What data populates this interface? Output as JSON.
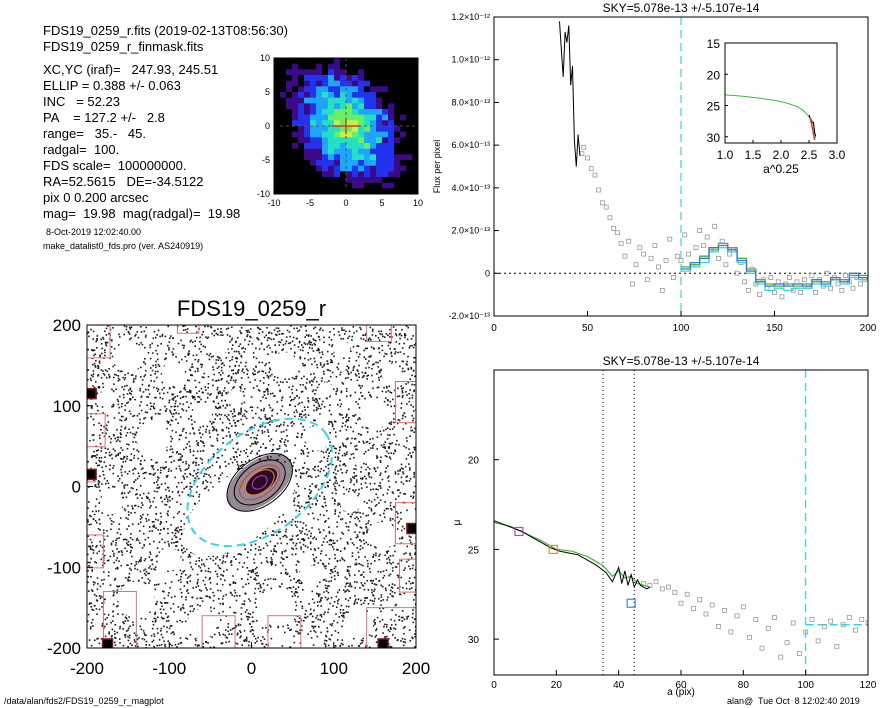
{
  "header": {
    "lines": [
      "FDS19_0259_r.fits  (2019-02-13T08:56:30)",
      "FDS19_0259_r_finmask.fits",
      "XC,YC (iraf)=   247.93, 245.51",
      "ELLIP = 0.388 +/- 0.063",
      "INC   = 52.23",
      "PA    = 127.2 +/-   2.8",
      "range=   35.-   45.",
      "radgal=  100.",
      "FDS scale=  100000000.",
      "RA=52.5615   DE=-34.5122",
      "pix 0 0.200 arcsec",
      "mag=  19.98  mag(radgal)=  19.98"
    ],
    "date_line": "8-Oct-2019 12:02:40.00",
    "prog_line": "make_datalist0_fds.pro (ver. AS240919)"
  },
  "footer": {
    "path": "/data/alan/fds2/FDS19_0259_r_magplot",
    "stamp": "alan@  Tue Oct  8 12:02:40 2019"
  },
  "colors": {
    "black": "#000000",
    "cyan": "#35d6e6",
    "grey": "#9a9a9a",
    "green": "#3cb83c",
    "blue": "#4a6fd8",
    "red": "#d13a3a",
    "orange": "#f08a30",
    "magenta": "#c040c0",
    "box_blue": "#3a8ad8"
  },
  "chart_data": [
    {
      "id": "contour",
      "type": "heatmap",
      "xlim": [
        -10,
        10
      ],
      "ylim": [
        -10,
        10
      ],
      "xticks": [
        "-10",
        "-5",
        "0",
        "5",
        "10"
      ],
      "yticks": [
        "10",
        "5",
        "0",
        "-5",
        "-10"
      ],
      "colormap": [
        "#000000",
        "#3a0a88",
        "#2233ee",
        "#1ea6ff",
        "#22e0c0",
        "#66f066",
        "#c8f04a"
      ]
    },
    {
      "id": "image",
      "type": "scatter",
      "title": "FDS19_0259_r",
      "xlim": [
        -200,
        200
      ],
      "ylim": [
        -200,
        200
      ],
      "xticks": [
        "-200",
        "-100",
        "0",
        "100",
        "200"
      ],
      "yticks": [
        "200",
        "100",
        "0",
        "-100",
        "-200"
      ],
      "ellipses": [
        {
          "a": 100,
          "b": 61,
          "pa": 127.2,
          "color": "#35d6e6",
          "dash": true
        },
        {
          "a": 45,
          "b": 28,
          "pa": 127.2,
          "color": "#000000",
          "dash": false
        },
        {
          "a": 35,
          "b": 22,
          "pa": 127.2,
          "color": "#000000",
          "dash": false
        },
        {
          "a": 28,
          "b": 16,
          "pa": 127.2,
          "color": "#d13a3a",
          "dash": false
        },
        {
          "a": 20,
          "b": 12,
          "pa": 127.2,
          "color": "#f08a30",
          "dash": false
        },
        {
          "a": 10,
          "b": 7,
          "pa": 127.2,
          "color": "#c040c0",
          "dash": false
        }
      ]
    },
    {
      "id": "sky",
      "type": "line",
      "title": "SKY=5.078e-13 +/-5.107e-14",
      "ylabel": "Flux per pixel",
      "xlim": [
        0,
        200
      ],
      "ylim": [
        -2e-13,
        1.2e-12
      ],
      "xticks": [
        "0",
        "50",
        "100",
        "150",
        "200"
      ],
      "yticks": [
        {
          "v": 1.2e-12,
          "t": "1.2×10⁻¹²"
        },
        {
          "v": 1e-12,
          "t": "1.0×10⁻¹²"
        },
        {
          "v": 8e-13,
          "t": "8.0×10⁻¹³"
        },
        {
          "v": 6e-13,
          "t": "6.0×10⁻¹³"
        },
        {
          "v": 4e-13,
          "t": "4.0×10⁻¹³"
        },
        {
          "v": 2e-13,
          "t": "2.0×10⁻¹³"
        },
        {
          "v": 0,
          "t": "0"
        },
        {
          "v": -2e-13,
          "t": "-2.0×10⁻¹³"
        }
      ],
      "vline": 100,
      "inset": {
        "xlabel": "a^0.25",
        "xlim": [
          1.0,
          3.0
        ],
        "ylim": [
          15,
          31
        ],
        "xticks": [
          "1.0",
          "1.5",
          "2.0",
          "2.5",
          "3.0"
        ],
        "yticks": [
          "15",
          "20",
          "25",
          "30"
        ],
        "x": [
          1.0,
          1.3,
          1.6,
          1.9,
          2.1,
          2.3,
          2.4,
          2.45,
          2.5,
          2.55,
          2.58,
          2.6,
          2.62
        ],
        "y": [
          23.3,
          23.5,
          23.8,
          24.2,
          24.6,
          25.2,
          25.8,
          26.3,
          26.8,
          27.3,
          28.0,
          29.0,
          30.2
        ]
      },
      "black_x": [
        35,
        36,
        37,
        38,
        39,
        40,
        41,
        42,
        43,
        44,
        45,
        46
      ],
      "black_y": [
        1.18e-12,
        1.05e-12,
        9.2e-13,
        1.13e-12,
        1.08e-12,
        1.16e-12,
        8.8e-13,
        9.7e-13,
        6.2e-13,
        5e-13,
        6.5e-13,
        5.5e-13
      ],
      "step_x": [
        100,
        105,
        110,
        115,
        120,
        125,
        130,
        135,
        140,
        145,
        150,
        155,
        160,
        165,
        170,
        175,
        180,
        185,
        190,
        195,
        200
      ],
      "step_blue": [
        2e-14,
        5e-14,
        7e-14,
        1.2e-13,
        1.3e-13,
        1.1e-13,
        6e-14,
        1e-14,
        -4e-14,
        -6e-14,
        -5e-14,
        -6e-14,
        -5e-14,
        -6e-14,
        -3e-14,
        -5e-14,
        -2e-14,
        -4e-14,
        0.0,
        -2e-14,
        -2e-14
      ],
      "step_green": [
        3e-14,
        4e-14,
        8e-14,
        1.1e-13,
        1.4e-13,
        1.2e-13,
        7e-14,
        2e-14,
        -3e-14,
        -5e-14,
        -6e-14,
        -5e-14,
        -6e-14,
        -5e-14,
        -4e-14,
        -4e-14,
        -3e-14,
        -3e-14,
        -1e-14,
        -1e-14,
        0.0
      ],
      "step_cyan": [
        1e-14,
        3e-14,
        5e-14,
        1e-13,
        1.2e-13,
        1e-13,
        5e-14,
        0.0,
        -5e-14,
        -8e-14,
        -7e-14,
        -8e-14,
        -7e-14,
        -7e-14,
        -5e-14,
        -6e-14,
        -3e-14,
        -5e-14,
        -2e-14,
        -3e-14,
        -3e-14
      ],
      "pts_x": [
        47,
        48,
        50,
        52,
        54,
        56,
        58,
        60,
        62,
        64,
        66,
        68,
        70,
        72,
        74,
        76,
        78,
        80,
        82,
        84,
        86,
        88,
        90,
        92,
        94,
        96,
        98,
        100,
        102,
        104,
        106,
        108,
        110,
        112,
        114,
        116,
        118,
        120,
        122,
        124,
        126,
        128,
        130,
        132,
        134,
        136,
        138,
        140,
        142,
        144,
        146,
        148,
        150,
        152,
        154,
        156,
        158,
        160,
        162,
        164,
        166,
        168,
        170,
        172,
        174,
        176,
        178,
        180,
        182,
        184,
        186,
        188,
        190,
        192,
        194,
        196,
        198
      ],
      "pts_y": [
        5.6e-13,
        5.9e-13,
        5.4e-13,
        4.9e-13,
        4.6e-13,
        3.9e-13,
        3.3e-13,
        3.1e-13,
        2.6e-13,
        2.1e-13,
        1.9e-13,
        1.4e-13,
        8e-14,
        1.5e-13,
        -5e-14,
        4e-14,
        1.2e-13,
        9e-14,
        -3e-14,
        7e-14,
        1.3e-13,
        3e-14,
        -8e-14,
        6e-14,
        1.6e-13,
        -2e-14,
        8e-14,
        6e-14,
        1.8e-13,
        9e-14,
        4e-14,
        1.2e-13,
        2e-13,
        1.3e-13,
        1.7e-13,
        1.1e-13,
        2.2e-13,
        7e-14,
        1.5e-13,
        4e-14,
        9e-14,
        1.1e-13,
        0.0,
        5e-14,
        -4e-14,
        -8e-14,
        2e-14,
        -5e-14,
        -1e-13,
        -3e-14,
        -7e-14,
        -2e-14,
        -9e-14,
        -4e-14,
        -1.1e-13,
        -5e-14,
        -2e-14,
        -8e-14,
        -4e-14,
        -9e-14,
        -3e-14,
        -6e-14,
        -1e-14,
        -9e-14,
        -3e-14,
        -6e-14,
        0.0,
        -7e-14,
        -2e-14,
        -5e-14,
        -8e-14,
        -1e-14,
        -4e-14,
        -7e-14,
        -2e-14,
        -5e-14,
        -3e-14
      ]
    },
    {
      "id": "profile",
      "type": "line",
      "title": "SKY=5.078e-13 +/-5.107e-14",
      "xlabel": "a (pix)",
      "ylabel": "μ",
      "xlim": [
        0,
        120
      ],
      "ylim": [
        32,
        15
      ],
      "xticks": [
        "0",
        "20",
        "40",
        "60",
        "80",
        "100",
        "120"
      ],
      "yticks": [
        {
          "v": 20,
          "t": "20"
        },
        {
          "v": 25,
          "t": "25"
        },
        {
          "v": 30,
          "t": "30"
        }
      ],
      "vlines_dot": [
        35,
        45
      ],
      "vline_cyan": 100,
      "hseg_cyan": {
        "x0": 100,
        "x1": 120,
        "y": 29.2
      },
      "boxes": [
        {
          "x": 8,
          "y": 24.0,
          "color": "#c040c0"
        },
        {
          "x": 19,
          "y": 25.0,
          "color": "#f08a30"
        },
        {
          "x": 44,
          "y": 28.0,
          "color": "#3a8ad8"
        }
      ],
      "black_x": [
        0,
        3,
        6,
        9,
        12,
        15,
        18,
        21,
        24,
        27,
        30,
        33,
        36,
        38,
        40,
        41,
        42,
        43,
        44,
        45,
        46,
        47,
        48,
        49,
        50
      ],
      "black_y": [
        23.4,
        23.6,
        23.8,
        24.0,
        24.3,
        24.6,
        24.9,
        25.1,
        25.2,
        25.3,
        25.6,
        25.9,
        26.3,
        26.8,
        26.0,
        26.9,
        26.2,
        27.0,
        26.4,
        27.1,
        26.7,
        27.0,
        27.1,
        27.2,
        27.1
      ],
      "green_x": [
        0,
        5,
        10,
        15,
        20,
        25,
        30,
        35,
        38,
        40,
        42,
        44,
        46,
        48,
        50
      ],
      "green_y": [
        23.5,
        23.7,
        24.1,
        24.5,
        25.0,
        25.1,
        25.4,
        25.9,
        26.5,
        26.2,
        26.6,
        26.5,
        26.9,
        27.0,
        27.1
      ],
      "pts_x": [
        48,
        50,
        52,
        54,
        56,
        58,
        60,
        62,
        64,
        66,
        68,
        70,
        72,
        74,
        76,
        78,
        80,
        82,
        84,
        86,
        88,
        90,
        92,
        94,
        96,
        98,
        100,
        102,
        104,
        106,
        108,
        110,
        112,
        114,
        116,
        118,
        120
      ],
      "pts_y": [
        26.9,
        27.0,
        26.8,
        27.2,
        27.1,
        27.4,
        28.0,
        27.5,
        28.3,
        27.8,
        28.6,
        28.1,
        29.3,
        28.4,
        29.6,
        28.7,
        28.2,
        29.9,
        28.9,
        30.5,
        29.4,
        28.8,
        31.0,
        30.2,
        29.1,
        30.8,
        29.6,
        28.9,
        30.1,
        29.3,
        29.0,
        30.4,
        29.2,
        28.8,
        29.5,
        28.9,
        29.1
      ]
    }
  ]
}
